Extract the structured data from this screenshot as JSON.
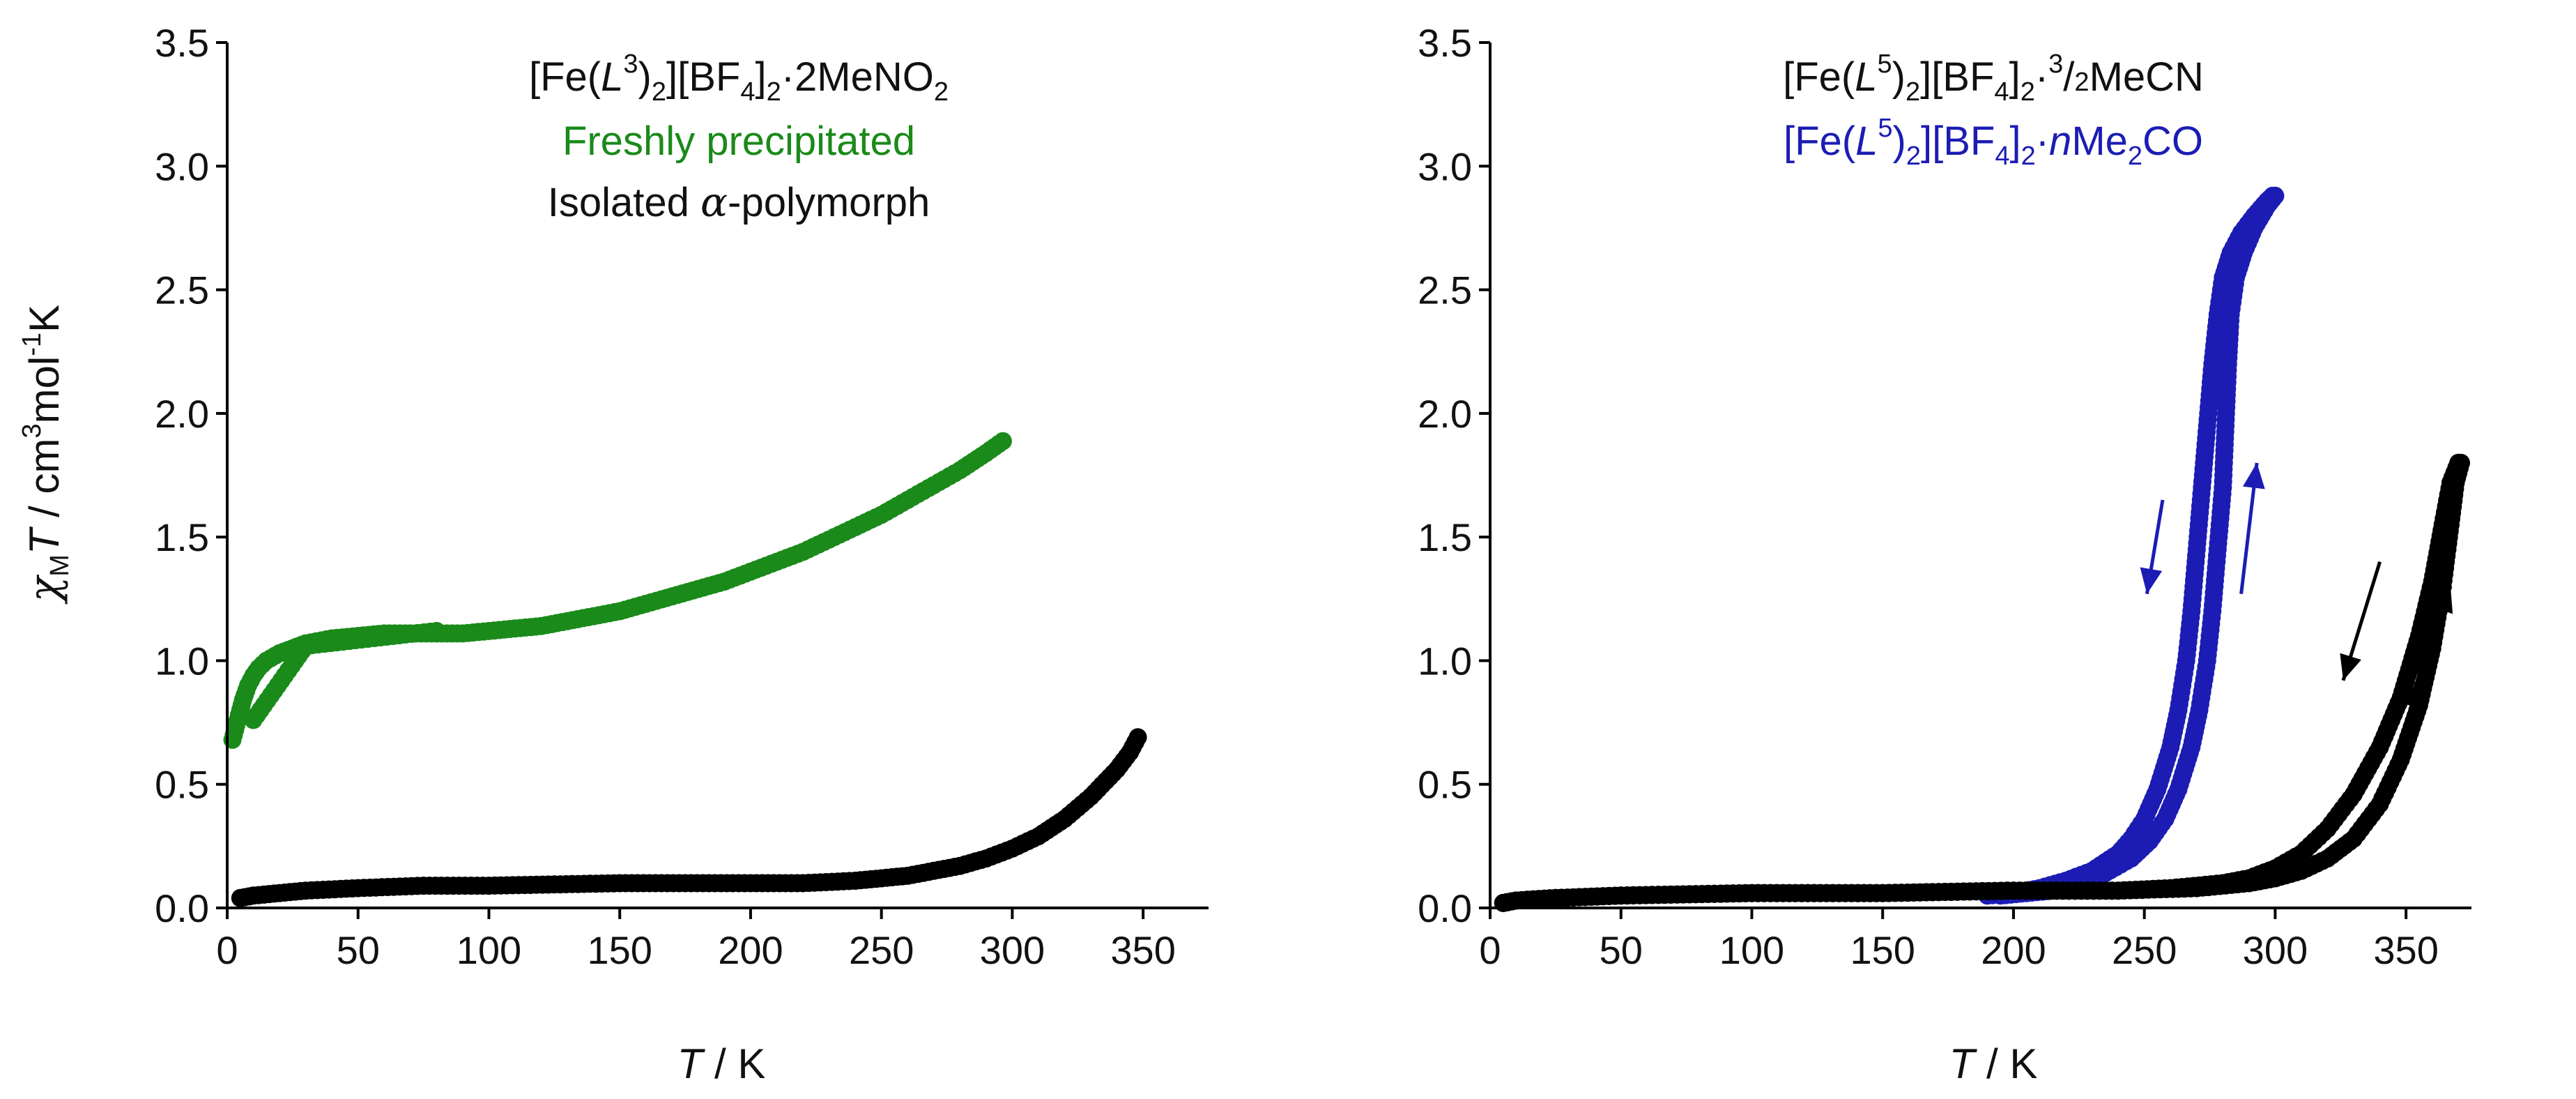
{
  "figure": {
    "y_axis_label": {
      "chi": "χ",
      "chi_sub": "M",
      "t": "T",
      "rest": " / cm",
      "rest_sup1": "3",
      "rest_mid": "mol",
      "rest_sup2": "-1",
      "rest_end": "K"
    },
    "x_axis_label": {
      "t": "T",
      "rest": " / K"
    }
  },
  "colors": {
    "green": "#1a8a1a",
    "black": "#000000",
    "blue": "#1c1cb4"
  },
  "legends": {
    "left": {
      "line1": {
        "a": "[Fe(",
        "b": "L",
        "c": "3",
        "d": ")",
        "e": "2",
        "f": "][BF",
        "g": "4",
        "h": "]",
        "i": "2",
        "j": "·2MeNO",
        "k": "2"
      },
      "line2": "Freshly precipitated",
      "line3": {
        "a": "Isolated ",
        "b": "α",
        "c": "-polymorph"
      }
    },
    "right": {
      "line1": {
        "a": "[Fe(",
        "b": "L",
        "c": "5",
        "d": ")",
        "e": "2",
        "f": "][BF",
        "g": "4",
        "h": "]",
        "i": "2",
        "j": "·",
        "k": "3",
        "l": "/",
        "m": "2",
        "n": "MeCN"
      },
      "line2": {
        "a": "[Fe(",
        "b": "L",
        "c": "5",
        "d": ")",
        "e": "2",
        "f": "][BF",
        "g": "4",
        "h": "]",
        "i": "2",
        "j": "·",
        "k": "n",
        "l": "Me",
        "m": "2",
        "n": "CO"
      }
    }
  },
  "chart_data": [
    {
      "type": "scatter",
      "panel": "left",
      "xlabel": "T / K",
      "ylabel": "χMT / cm3mol-1K",
      "xlim": [
        0,
        375
      ],
      "ylim": [
        0,
        3.5
      ],
      "xticks": [
        0,
        50,
        100,
        150,
        200,
        250,
        300,
        350
      ],
      "yticks": [
        "0.0",
        "0.5",
        "1.0",
        "1.5",
        "2.0",
        "2.5",
        "3.0",
        "3.5"
      ],
      "series": [
        {
          "name": "Freshly precipitated",
          "color": "green",
          "points": [
            [
              2,
              0.68
            ],
            [
              4,
              0.76
            ],
            [
              6,
              0.84
            ],
            [
              8,
              0.9
            ],
            [
              10,
              0.94
            ],
            [
              12,
              0.97
            ],
            [
              15,
              1.0
            ],
            [
              20,
              1.03
            ],
            [
              25,
              1.05
            ],
            [
              30,
              1.07
            ],
            [
              40,
              1.09
            ],
            [
              50,
              1.1
            ],
            [
              60,
              1.11
            ],
            [
              70,
              1.11
            ],
            [
              80,
              1.11
            ],
            [
              90,
              1.11
            ],
            [
              100,
              1.12
            ],
            [
              110,
              1.13
            ],
            [
              120,
              1.14
            ],
            [
              130,
              1.16
            ],
            [
              140,
              1.18
            ],
            [
              150,
              1.2
            ],
            [
              160,
              1.23
            ],
            [
              170,
              1.26
            ],
            [
              180,
              1.29
            ],
            [
              190,
              1.32
            ],
            [
              200,
              1.36
            ],
            [
              210,
              1.4
            ],
            [
              220,
              1.44
            ],
            [
              230,
              1.49
            ],
            [
              240,
              1.54
            ],
            [
              250,
              1.59
            ],
            [
              260,
              1.65
            ],
            [
              270,
              1.71
            ],
            [
              280,
              1.77
            ],
            [
              290,
              1.84
            ],
            [
              298,
              1.9
            ],
            [
              10,
              0.76
            ],
            [
              30,
              1.06
            ],
            [
              80,
              1.12
            ]
          ]
        },
        {
          "name": "Isolated α-polymorph",
          "color": "black",
          "points": [
            [
              5,
              0.04
            ],
            [
              10,
              0.05
            ],
            [
              20,
              0.06
            ],
            [
              30,
              0.07
            ],
            [
              50,
              0.08
            ],
            [
              75,
              0.09
            ],
            [
              100,
              0.09
            ],
            [
              125,
              0.095
            ],
            [
              150,
              0.1
            ],
            [
              175,
              0.1
            ],
            [
              200,
              0.1
            ],
            [
              220,
              0.1
            ],
            [
              240,
              0.11
            ],
            [
              250,
              0.12
            ],
            [
              260,
              0.13
            ],
            [
              270,
              0.15
            ],
            [
              280,
              0.17
            ],
            [
              290,
              0.2
            ],
            [
              300,
              0.24
            ],
            [
              310,
              0.29
            ],
            [
              320,
              0.36
            ],
            [
              330,
              0.45
            ],
            [
              340,
              0.56
            ],
            [
              345,
              0.63
            ],
            [
              348,
              0.69
            ]
          ]
        }
      ]
    },
    {
      "type": "scatter",
      "panel": "right",
      "xlabel": "T / K",
      "ylabel": "",
      "xlim": [
        0,
        375
      ],
      "ylim": [
        0,
        3.5
      ],
      "xticks": [
        0,
        50,
        100,
        150,
        200,
        250,
        300,
        350
      ],
      "yticks": [
        "0.0",
        "0.5",
        "1.0",
        "1.5",
        "2.0",
        "2.5",
        "3.0",
        "3.5"
      ],
      "series": [
        {
          "name": "[Fe(L5)2][BF4]2·nMe2CO (cooling)",
          "color": "blue",
          "points": [
            [
              190,
              0.05
            ],
            [
              200,
              0.06
            ],
            [
              210,
              0.08
            ],
            [
              220,
              0.11
            ],
            [
              230,
              0.15
            ],
            [
              240,
              0.22
            ],
            [
              245,
              0.28
            ],
            [
              250,
              0.36
            ],
            [
              255,
              0.48
            ],
            [
              260,
              0.65
            ],
            [
              263,
              0.8
            ],
            [
              266,
              1.0
            ],
            [
              268,
              1.2
            ],
            [
              270,
              1.45
            ],
            [
              272,
              1.7
            ],
            [
              274,
              1.95
            ],
            [
              276,
              2.2
            ],
            [
              278,
              2.4
            ],
            [
              280,
              2.55
            ],
            [
              283,
              2.65
            ],
            [
              287,
              2.73
            ],
            [
              292,
              2.8
            ],
            [
              297,
              2.86
            ],
            [
              299,
              2.88
            ]
          ]
        },
        {
          "name": "[Fe(L5)2][BF4]2·nMe2CO (heating)",
          "color": "blue",
          "points": [
            [
              195,
              0.05
            ],
            [
              205,
              0.06
            ],
            [
              215,
              0.07
            ],
            [
              225,
              0.1
            ],
            [
              235,
              0.14
            ],
            [
              245,
              0.2
            ],
            [
              252,
              0.27
            ],
            [
              258,
              0.36
            ],
            [
              263,
              0.48
            ],
            [
              268,
              0.65
            ],
            [
              271,
              0.8
            ],
            [
              274,
              1.0
            ],
            [
              276,
              1.2
            ],
            [
              278,
              1.45
            ],
            [
              280,
              1.7
            ],
            [
              281,
              1.95
            ],
            [
              282,
              2.2
            ],
            [
              283,
              2.4
            ],
            [
              285,
              2.55
            ],
            [
              288,
              2.65
            ],
            [
              292,
              2.75
            ],
            [
              297,
              2.84
            ],
            [
              300,
              2.88
            ]
          ]
        },
        {
          "name": "[Fe(L5)2][BF4]2·3/2MeCN (cooling)",
          "color": "black",
          "points": [
            [
              5,
              0.02
            ],
            [
              10,
              0.03
            ],
            [
              25,
              0.04
            ],
            [
              50,
              0.05
            ],
            [
              100,
              0.06
            ],
            [
              150,
              0.06
            ],
            [
              200,
              0.07
            ],
            [
              240,
              0.07
            ],
            [
              260,
              0.08
            ],
            [
              280,
              0.1
            ],
            [
              290,
              0.12
            ],
            [
              300,
              0.16
            ],
            [
              310,
              0.22
            ],
            [
              320,
              0.32
            ],
            [
              330,
              0.46
            ],
            [
              340,
              0.65
            ],
            [
              348,
              0.85
            ],
            [
              355,
              1.1
            ],
            [
              360,
              1.32
            ],
            [
              364,
              1.55
            ],
            [
              367,
              1.72
            ],
            [
              370,
              1.8
            ]
          ]
        },
        {
          "name": "[Fe(L5)2][BF4]2·3/2MeCN (heating)",
          "color": "black",
          "points": [
            [
              5,
              0.02
            ],
            [
              10,
              0.03
            ],
            [
              25,
              0.04
            ],
            [
              50,
              0.05
            ],
            [
              100,
              0.06
            ],
            [
              150,
              0.06
            ],
            [
              200,
              0.07
            ],
            [
              240,
              0.07
            ],
            [
              270,
              0.08
            ],
            [
              290,
              0.1
            ],
            [
              300,
              0.12
            ],
            [
              310,
              0.15
            ],
            [
              320,
              0.2
            ],
            [
              330,
              0.28
            ],
            [
              340,
              0.42
            ],
            [
              348,
              0.6
            ],
            [
              355,
              0.82
            ],
            [
              360,
              1.05
            ],
            [
              364,
              1.3
            ],
            [
              367,
              1.55
            ],
            [
              369,
              1.72
            ],
            [
              371,
              1.8
            ]
          ]
        }
      ],
      "annotations": [
        {
          "type": "arrow",
          "color": "blue",
          "direction": "down",
          "from": [
            257,
            1.65
          ],
          "to": [
            251,
            1.27
          ]
        },
        {
          "type": "arrow",
          "color": "blue",
          "direction": "up",
          "from": [
            287,
            1.27
          ],
          "to": [
            293,
            1.8
          ]
        },
        {
          "type": "arrow",
          "color": "black",
          "direction": "down",
          "from": [
            340,
            1.4
          ],
          "to": [
            326,
            0.92
          ]
        },
        {
          "type": "arrow",
          "color": "black",
          "direction": "up",
          "from": [
            351,
            0.82
          ],
          "to": [
            367,
            1.3
          ]
        }
      ]
    }
  ]
}
